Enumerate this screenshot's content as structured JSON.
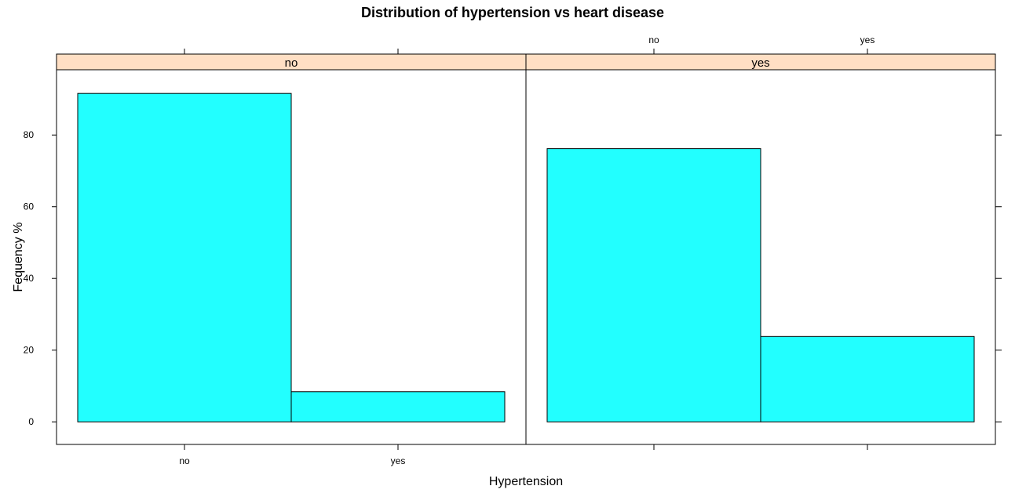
{
  "chart_data": {
    "type": "bar",
    "title": "Distribution of hypertension vs heart disease",
    "xlabel": "Hypertension",
    "ylabel": "Fequency %",
    "categories": [
      "no",
      "yes"
    ],
    "ylim": [
      -6.3,
      98.2
    ],
    "yticks": [
      0,
      20,
      40,
      60,
      80
    ],
    "bar_color": "#22ffff",
    "strip_color": "#ffdfc4",
    "panels": [
      {
        "strip_label": "no",
        "values": [
          91.6,
          8.4
        ]
      },
      {
        "strip_label": "yes",
        "values": [
          76.2,
          23.8
        ]
      }
    ]
  }
}
